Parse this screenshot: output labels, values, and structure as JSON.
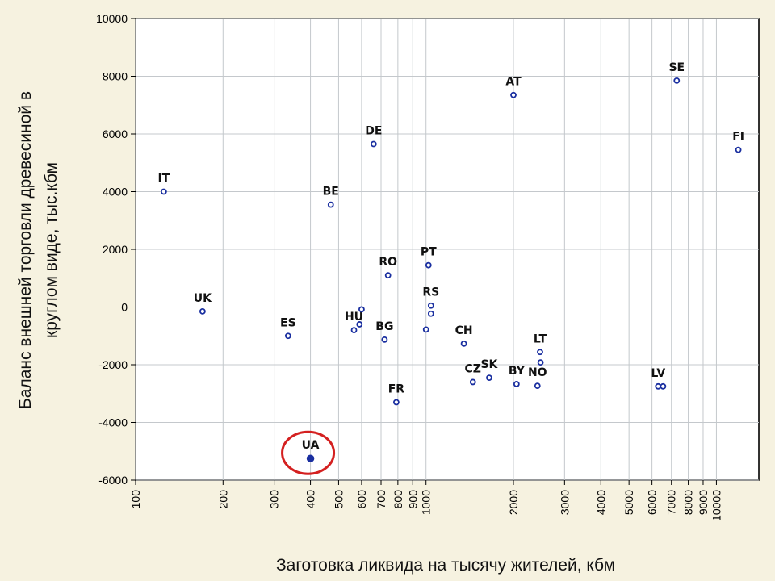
{
  "chart_data": {
    "type": "scatter",
    "xscale": "log",
    "xlim": [
      100,
      14000
    ],
    "ylim": [
      -6000,
      10000
    ],
    "xlabel": "Заготовка ликвида на тысячу жителей, кбм",
    "ylabel_lines": [
      "Баланс внешней торговли древесиной в",
      "круглом виде, тыс.кбм"
    ],
    "xticks": [
      100,
      200,
      300,
      400,
      500,
      600,
      700,
      800,
      900,
      1000,
      2000,
      3000,
      4000,
      5000,
      6000,
      7000,
      8000,
      9000,
      10000
    ],
    "yticks": [
      -6000,
      -4000,
      -2000,
      0,
      2000,
      4000,
      6000,
      8000,
      10000
    ],
    "grid": true,
    "colors": {
      "marker": "#1a2fa0",
      "highlight_ring": "#d42020",
      "grid": "#c4c8cc",
      "background": "#ffffff"
    },
    "points": [
      {
        "label": "IT",
        "x": 125,
        "y": 4000
      },
      {
        "label": "UK",
        "x": 170,
        "y": -150
      },
      {
        "label": "ES",
        "x": 335,
        "y": -1000
      },
      {
        "label": "UA",
        "x": 400,
        "y": -5250,
        "highlighted": true,
        "filled": true
      },
      {
        "label": "BE",
        "x": 470,
        "y": 3550
      },
      {
        "label": "HU",
        "x": 565,
        "y": -800
      },
      {
        "label": "",
        "x": 590,
        "y": -600
      },
      {
        "label": "",
        "x": 600,
        "y": -80
      },
      {
        "label": "DE",
        "x": 660,
        "y": 5650
      },
      {
        "label": "BG",
        "x": 720,
        "y": -1130
      },
      {
        "label": "RO",
        "x": 740,
        "y": 1100
      },
      {
        "label": "FR",
        "x": 790,
        "y": -3300
      },
      {
        "label": "PT",
        "x": 1020,
        "y": 1450
      },
      {
        "label": "",
        "x": 1000,
        "y": -780
      },
      {
        "label": "RS",
        "x": 1040,
        "y": 50
      },
      {
        "label": "",
        "x": 1040,
        "y": -230
      },
      {
        "label": "CH",
        "x": 1350,
        "y": -1270
      },
      {
        "label": "CZ",
        "x": 1450,
        "y": -2600
      },
      {
        "label": "SK",
        "x": 1650,
        "y": -2450
      },
      {
        "label": "AT",
        "x": 2000,
        "y": 7350
      },
      {
        "label": "BY",
        "x": 2050,
        "y": -2670
      },
      {
        "label": "NO",
        "x": 2420,
        "y": -2730
      },
      {
        "label": "LT",
        "x": 2470,
        "y": -1560
      },
      {
        "label": "",
        "x": 2480,
        "y": -1920
      },
      {
        "label": "LV",
        "x": 6300,
        "y": -2750
      },
      {
        "label": "",
        "x": 6550,
        "y": -2750
      },
      {
        "label": "SE",
        "x": 7300,
        "y": 7850
      },
      {
        "label": "FI",
        "x": 11900,
        "y": 5450
      }
    ]
  }
}
